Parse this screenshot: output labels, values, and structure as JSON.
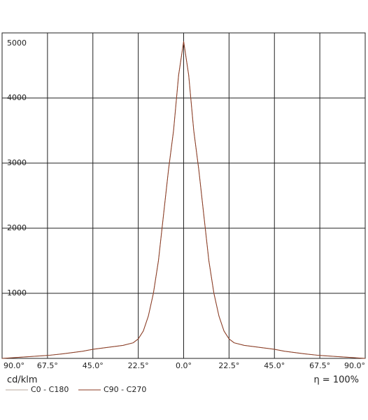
{
  "chart_data": {
    "type": "line",
    "x": [
      -90,
      -80,
      -67.5,
      -60,
      -50,
      -45,
      -40,
      -30,
      -25,
      -22.5,
      -20,
      -17.5,
      -15,
      -12.5,
      -10,
      -7.5,
      -5,
      -2.5,
      0,
      2.5,
      5,
      7.5,
      10,
      12.5,
      15,
      17.5,
      20,
      22.5,
      25,
      30,
      40,
      45,
      50,
      60,
      67.5,
      80,
      90
    ],
    "series": [
      {
        "name": "C0 - C180",
        "color": "#b8a89c",
        "values": [
          0,
          20,
          45,
          70,
          110,
          140,
          160,
          200,
          240,
          300,
          420,
          650,
          1000,
          1500,
          2200,
          2900,
          3500,
          4350,
          4870,
          4350,
          3500,
          2900,
          2200,
          1500,
          1000,
          650,
          420,
          300,
          240,
          200,
          160,
          140,
          110,
          70,
          45,
          20,
          0
        ]
      },
      {
        "name": "C90 - C270",
        "color": "#8b3a22",
        "values": [
          0,
          20,
          45,
          70,
          110,
          140,
          160,
          200,
          240,
          300,
          420,
          650,
          1000,
          1500,
          2200,
          2900,
          3500,
          4350,
          4870,
          4350,
          3500,
          2900,
          2200,
          1500,
          1000,
          650,
          420,
          300,
          240,
          200,
          160,
          140,
          110,
          70,
          45,
          20,
          0
        ]
      }
    ],
    "xlim": [
      -90,
      90
    ],
    "xticks": [
      {
        "value": -90,
        "label": "90.0°"
      },
      {
        "value": -67.5,
        "label": "67.5°"
      },
      {
        "value": -45,
        "label": "45.0°"
      },
      {
        "value": -22.5,
        "label": "22.5°"
      },
      {
        "value": 0,
        "label": "0.0°"
      },
      {
        "value": 22.5,
        "label": "22.5°"
      },
      {
        "value": 45,
        "label": "45.0°"
      },
      {
        "value": 67.5,
        "label": "67.5°"
      },
      {
        "value": 90,
        "label": "90.0°"
      }
    ],
    "ylim": [
      0,
      5000
    ],
    "yticks": [
      1000,
      2000,
      3000,
      4000,
      5000
    ],
    "grid": true,
    "y_label": "cd/klm",
    "annotation": "η = 100%"
  }
}
